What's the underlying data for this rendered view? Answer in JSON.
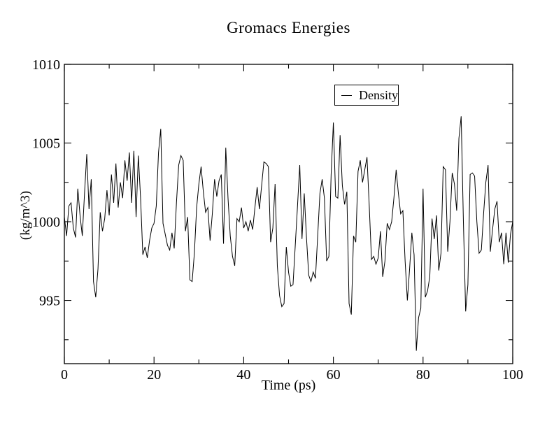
{
  "title": "Gromacs Energies",
  "axes": {
    "x_title": "Time (ps)",
    "y_title": "(kg/m^3)"
  },
  "legend": {
    "entries": [
      {
        "label": "Density",
        "color": "#000000"
      }
    ]
  },
  "colors": {
    "foreground": "#000000",
    "background": "#ffffff"
  },
  "chart_data": {
    "type": "line",
    "title": "Gromacs Energies",
    "xlabel": "Time (ps)",
    "ylabel": "(kg/m^3)",
    "xlim": [
      0,
      100
    ],
    "ylim": [
      990.98,
      1010
    ],
    "x_major_ticks": [
      0,
      20,
      40,
      60,
      80,
      100
    ],
    "x_minor_ticks": [
      10,
      30,
      50,
      70,
      90
    ],
    "y_major_ticks": [
      995,
      1000,
      1005,
      1010
    ],
    "y_minor_ticks": [
      992.5,
      997.5,
      1002.5,
      1007.5
    ],
    "grid": false,
    "legend_position": "inside upper right of plot",
    "series": [
      {
        "name": "Density",
        "color": "#000000",
        "x_start": 0,
        "x_step": 0.5,
        "values": [
          1000.3,
          999.1,
          1001.0,
          1001.2,
          999.6,
          999.0,
          1002.1,
          1000.4,
          999.1,
          1001.8,
          1004.3,
          1000.8,
          1002.7,
          996.2,
          995.2,
          997.0,
          1000.6,
          999.4,
          1000.2,
          1002.0,
          1000.4,
          1003.0,
          1001.2,
          1003.7,
          1000.9,
          1002.5,
          1001.5,
          1003.9,
          1002.6,
          1004.4,
          1001.2,
          1004.5,
          1000.3,
          1004.2,
          1001.5,
          997.9,
          998.4,
          997.7,
          998.8,
          999.6,
          999.9,
          1001.0,
          1004.4,
          1005.9,
          999.9,
          999.2,
          998.5,
          998.2,
          999.3,
          998.3,
          1001.2,
          1003.6,
          1004.2,
          1003.9,
          999.4,
          1000.3,
          996.3,
          996.2,
          998.0,
          1000.9,
          1002.4,
          1003.5,
          1001.9,
          1000.6,
          1000.9,
          998.8,
          1000.5,
          1002.7,
          1001.6,
          1002.6,
          1003.0,
          998.6,
          1004.7,
          1001.5,
          999.1,
          997.8,
          997.2,
          1000.2,
          1000.0,
          1000.9,
          999.6,
          1000.0,
          999.4,
          1000.1,
          999.5,
          1000.9,
          1002.2,
          1000.8,
          1002.3,
          1003.8,
          1003.7,
          1003.5,
          998.7,
          999.6,
          1002.4,
          997.2,
          995.3,
          994.6,
          994.8,
          998.4,
          996.8,
          995.9,
          996.0,
          998.5,
          1001.0,
          1003.6,
          998.9,
          1001.8,
          999.0,
          996.6,
          996.2,
          996.8,
          996.4,
          999.1,
          1001.8,
          1002.7,
          1001.5,
          997.5,
          997.8,
          1003.0,
          1006.3,
          1001.6,
          1001.5,
          1005.5,
          1002.3,
          1001.1,
          1001.9,
          994.8,
          994.1,
          999.1,
          998.7,
          1003.2,
          1003.9,
          1002.5,
          1003.3,
          1004.1,
          1001.0,
          997.6,
          997.8,
          997.3,
          997.7,
          999.4,
          996.5,
          997.5,
          999.9,
          999.5,
          1000.0,
          1001.5,
          1003.3,
          1001.8,
          1000.5,
          1000.7,
          997.5,
          995.0,
          997.0,
          999.3,
          997.9,
          991.8,
          993.9,
          994.5,
          1002.1,
          995.2,
          995.6,
          996.5,
          1000.2,
          998.9,
          1000.4,
          996.9,
          998.0,
          1003.5,
          1003.3,
          998.1,
          1000.0,
          1003.1,
          1002.4,
          1000.7,
          1005.3,
          1006.7,
          1000.0,
          994.3,
          996.0,
          1003.0,
          1003.1,
          1002.9,
          1000.0,
          998.0,
          998.2,
          1000.5,
          1002.5,
          1003.6,
          998.1,
          999.5,
          1000.8,
          1001.3,
          998.7,
          999.3,
          997.3,
          999.3,
          997.4,
          999.2,
          1000.0
        ]
      }
    ]
  }
}
